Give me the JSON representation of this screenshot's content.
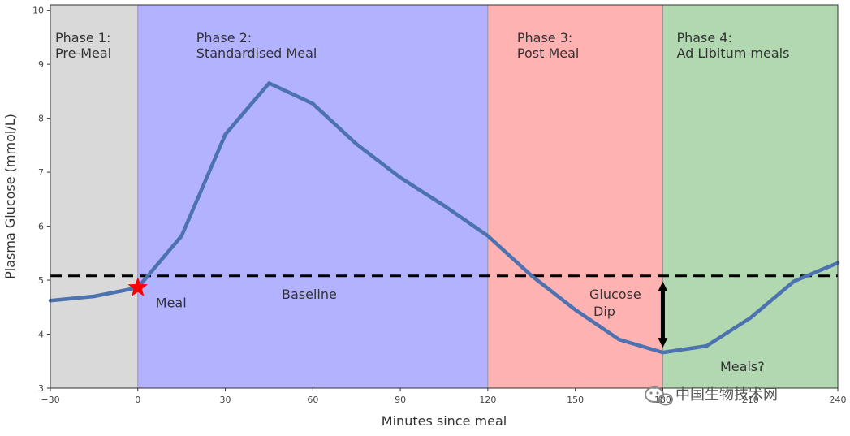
{
  "chart_data": {
    "type": "line",
    "title": "",
    "xlabel": "Minutes since meal",
    "ylabel": "Plasma Glucose (mmol/L)",
    "xlim": [
      -30,
      240
    ],
    "ylim": [
      3,
      10.1
    ],
    "xticks": [
      -30,
      0,
      30,
      60,
      90,
      120,
      150,
      180,
      210,
      240
    ],
    "yticks": [
      3,
      4,
      5,
      6,
      7,
      8,
      9,
      10
    ],
    "phases": [
      {
        "line1": "Phase 1:",
        "line2": "Pre-Meal",
        "x_start": -30,
        "x_end": 0,
        "color": "#d9d9d9"
      },
      {
        "line1": "Phase 2:",
        "line2": "Standardised Meal",
        "x_start": 0,
        "x_end": 120,
        "color": "#b2b2ff"
      },
      {
        "line1": "Phase 3:",
        "line2": "Post Meal",
        "x_start": 120,
        "x_end": 180,
        "color": "#ffb2b2"
      },
      {
        "line1": "Phase 4:",
        "line2": "Ad Libitum meals",
        "x_start": 180,
        "x_end": 240,
        "color": "#b2d8b2"
      }
    ],
    "series": [
      {
        "name": "Plasma glucose",
        "color": "#4c72b0",
        "x": [
          -30,
          -15,
          0,
          15,
          30,
          45,
          60,
          75,
          90,
          105,
          120,
          135,
          150,
          165,
          180,
          195,
          210,
          225,
          240
        ],
        "values": [
          4.62,
          4.7,
          4.86,
          5.82,
          7.7,
          8.65,
          8.27,
          7.52,
          6.9,
          6.38,
          5.82,
          5.08,
          4.45,
          3.9,
          3.66,
          3.78,
          4.3,
          4.98,
          5.32
        ]
      }
    ],
    "baseline": {
      "label": "Baseline",
      "value": 5.08,
      "color": "#000000"
    },
    "meal_marker": {
      "label": "Meal",
      "x": 0,
      "y": 4.86,
      "color": "#ff0000"
    },
    "glucose_dip": {
      "label_line1": "Glucose",
      "label_line2": "Dip",
      "x": 180,
      "y_top": 5.08,
      "y_bottom": 3.66
    },
    "meals_note": "Meals?"
  },
  "watermark": {
    "text": "中国生物技术网"
  }
}
